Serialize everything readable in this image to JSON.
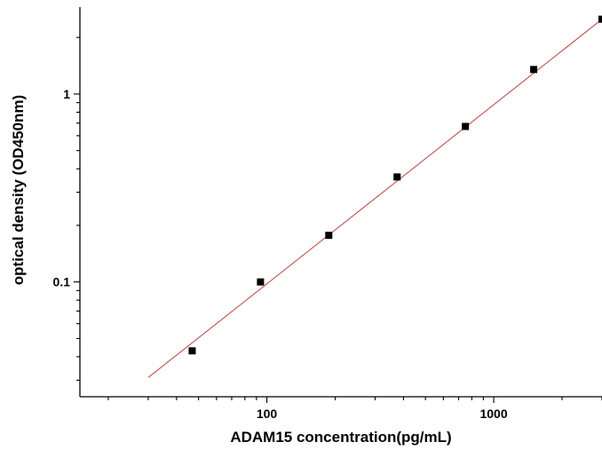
{
  "chart_data": {
    "type": "scatter",
    "title": "",
    "xlabel": "ADAM15  concentration(pg/mL)",
    "ylabel": "optical density (OD450nm)",
    "xscale": "log",
    "yscale": "log",
    "xlim": [
      15,
      3000
    ],
    "ylim": [
      0.0245,
      2.9
    ],
    "x_tick_labels": [
      {
        "value": 100,
        "label": "100"
      },
      {
        "value": 1000,
        "label": "1000"
      }
    ],
    "y_tick_labels": [
      {
        "value": 0.1,
        "label": "0.1"
      },
      {
        "value": 1,
        "label": "1"
      }
    ],
    "grid": false,
    "series": [
      {
        "type": "scatter",
        "marker": "square",
        "color": "#000000",
        "x": [
          46.875,
          93.75,
          187.5,
          375,
          750,
          1500,
          3000
        ],
        "y": [
          0.043,
          0.1,
          0.177,
          0.362,
          0.672,
          1.35,
          2.5
        ]
      },
      {
        "type": "line",
        "color": "#c0504d",
        "x": [
          30,
          3000
        ],
        "y": [
          0.031,
          2.5
        ]
      }
    ]
  }
}
